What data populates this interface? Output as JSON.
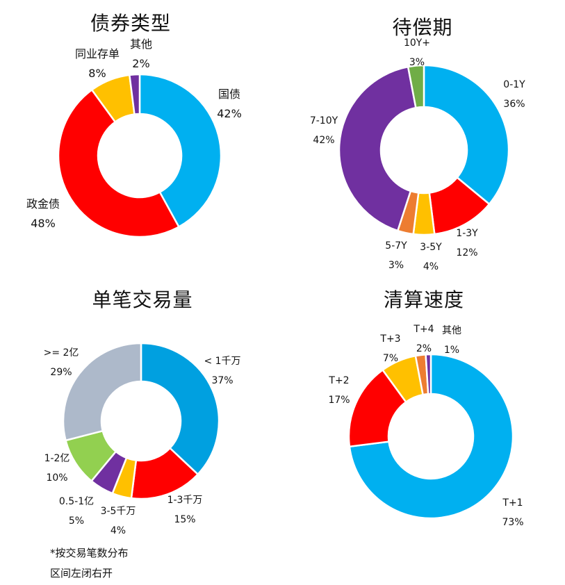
{
  "chart_data": [
    {
      "type": "pie",
      "title": "债券类型",
      "slices": [
        {
          "label": "国债",
          "value": 42,
          "pct": "42%",
          "color": "#00B0F0"
        },
        {
          "label": "政金债",
          "value": 48,
          "pct": "48%",
          "color": "#FF0000"
        },
        {
          "label": "同业存单",
          "value": 8,
          "pct": "8%",
          "color": "#FFC000"
        },
        {
          "label": "其他",
          "value": 2,
          "pct": "2%",
          "color": "#7030A0"
        }
      ]
    },
    {
      "type": "pie",
      "title": "待偿期",
      "slices": [
        {
          "label": "0-1Y",
          "value": 36,
          "pct": "36%",
          "color": "#00B0F0"
        },
        {
          "label": "1-3Y",
          "value": 12,
          "pct": "12%",
          "color": "#FF0000"
        },
        {
          "label": "3-5Y",
          "value": 4,
          "pct": "4%",
          "color": "#FFC000"
        },
        {
          "label": "5-7Y",
          "value": 3,
          "pct": "3%",
          "color": "#ED7D31"
        },
        {
          "label": "7-10Y",
          "value": 42,
          "pct": "42%",
          "color": "#7030A0"
        },
        {
          "label": "10Y+",
          "value": 3,
          "pct": "3%",
          "color": "#70AD47"
        }
      ]
    },
    {
      "type": "pie",
      "title": "单笔交易量",
      "slices": [
        {
          "label": "< 1千万",
          "value": 37,
          "pct": "37%",
          "color": "#00A0E0"
        },
        {
          "label": "1-3千万",
          "value": 15,
          "pct": "15%",
          "color": "#FF0000"
        },
        {
          "label": "3-5千万",
          "value": 4,
          "pct": "4%",
          "color": "#FFC000"
        },
        {
          "label": "0.5-1亿",
          "value": 5,
          "pct": "5%",
          "color": "#7030A0"
        },
        {
          "label": "1-2亿",
          "value": 10,
          "pct": "10%",
          "color": "#92D050"
        },
        {
          "label": ">= 2亿",
          "value": 29,
          "pct": "29%",
          "color": "#ADB9CA"
        }
      ],
      "notes": [
        "*按交易笔数分布",
        "区间左闭右开"
      ]
    },
    {
      "type": "pie",
      "title": "清算速度",
      "slices": [
        {
          "label": "T+1",
          "value": 73,
          "pct": "73%",
          "color": "#00B0F0"
        },
        {
          "label": "T+2",
          "value": 17,
          "pct": "17%",
          "color": "#FF0000"
        },
        {
          "label": "T+3",
          "value": 7,
          "pct": "7%",
          "color": "#FFC000"
        },
        {
          "label": "T+4",
          "value": 2,
          "pct": "2%",
          "color": "#ED7D31"
        },
        {
          "label": "其他",
          "value": 1,
          "pct": "1%",
          "color": "#7030A0"
        }
      ]
    }
  ]
}
